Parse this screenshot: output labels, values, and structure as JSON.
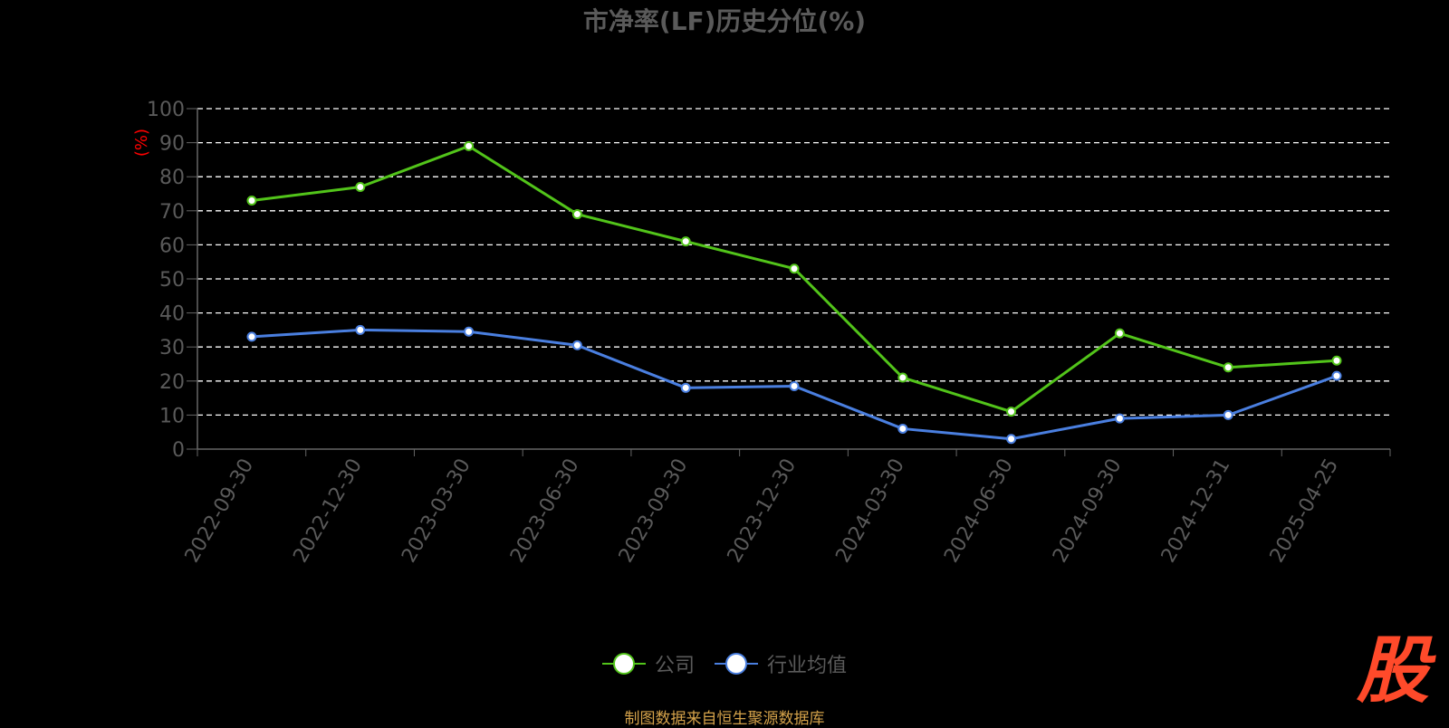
{
  "title": "市净率(LF)历史分位(%)",
  "source_note": "制图数据来自恒生聚源数据库",
  "brand_logo_text": "股",
  "legend": [
    {
      "label": "公司",
      "color": "#52c41a"
    },
    {
      "label": "行业均值",
      "color": "#4a7fe0"
    }
  ],
  "chart_data": {
    "type": "line",
    "title": "市净率(LF)历史分位(%)",
    "ylabel": "(%)",
    "ylim": [
      0,
      100
    ],
    "yticks": [
      0,
      10,
      20,
      30,
      40,
      50,
      60,
      70,
      80,
      90,
      100
    ],
    "grid": true,
    "legend_position": "bottom",
    "categories": [
      "2022-09-30",
      "2022-12-30",
      "2023-03-30",
      "2023-06-30",
      "2023-09-30",
      "2023-12-30",
      "2024-03-30",
      "2024-06-30",
      "2024-09-30",
      "2024-12-31",
      "2025-04-25"
    ],
    "series": [
      {
        "name": "公司",
        "color": "#52c41a",
        "values": [
          73,
          77,
          89,
          69,
          61,
          53,
          21,
          11,
          34,
          24,
          26
        ]
      },
      {
        "name": "行业均值",
        "color": "#4a7fe0",
        "values": [
          33,
          35,
          34.5,
          30.5,
          18,
          18.5,
          6,
          3,
          9,
          10,
          21.5
        ]
      }
    ]
  },
  "colors": {
    "ylabel": "#ff0000",
    "axis_text": "#5a5a5a",
    "grid": "#ffffff",
    "source": "#d4a24a",
    "brand": "#ff4a2a"
  }
}
